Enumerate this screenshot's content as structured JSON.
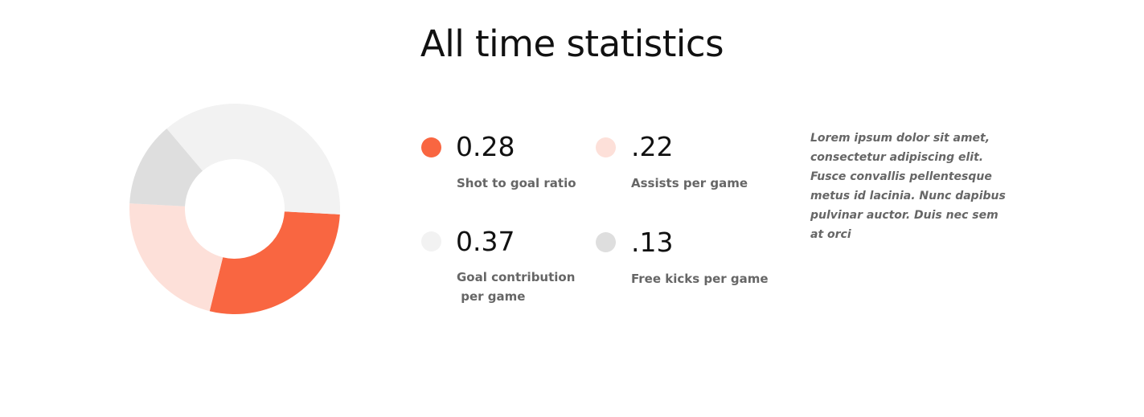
{
  "page": {
    "title": "All time statistics"
  },
  "chart_data": {
    "type": "pie",
    "style": "donut",
    "legend_placement": "right",
    "slices": [
      {
        "value": 0.28,
        "color": "#f96641"
      },
      {
        "value": 0.22,
        "color": "#fde0d9"
      },
      {
        "value": 0.13,
        "color": "#dedede"
      },
      {
        "value": 0.37,
        "color": "#f2f2f2"
      }
    ]
  },
  "stats": [
    {
      "value": "0.28",
      "label": "Shot to goal ratio",
      "color": "#f96641"
    },
    {
      "value": ".22",
      "label": "Assists per game",
      "color": "#fde0d9"
    },
    {
      "value": "0.37",
      "label": "Goal contribution\n per game",
      "color": "#f2f2f2"
    },
    {
      "value": ".13",
      "label": "Free kicks per game",
      "color": "#dedede"
    }
  ],
  "description": "Lorem ipsum dolor sit amet, consectetur adipiscing elit. Fusce convallis pellentesque metus id lacinia. Nunc dapibus pulvinar auctor. Duis nec sem at orci"
}
